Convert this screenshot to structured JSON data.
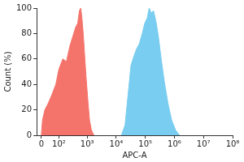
{
  "chart_data": {
    "type": "area",
    "x_label": "APC-A",
    "y_label": "Count (%)",
    "log": "x",
    "grid": false,
    "xlim": [
      -20,
      100000000
    ],
    "xticks": [
      0,
      {
        "value": 100,
        "label": "10²"
      },
      {
        "value": 1000,
        "label": "10³"
      },
      {
        "value": 10000,
        "label": "10⁴"
      },
      {
        "value": 100000,
        "label": "10⁵"
      },
      {
        "value": 1000000,
        "label": "10⁶"
      },
      {
        "value": 10000000,
        "label": "10⁷"
      },
      {
        "value": 100000000,
        "label": "10⁸"
      }
    ],
    "ylim": [
      0,
      100
    ],
    "yticks": [
      0,
      20,
      40,
      60,
      80,
      100
    ],
    "series": [
      {
        "color": "#f4736b",
        "x": [
          0,
          5,
          15,
          30,
          50,
          75,
          100,
          140,
          190,
          250,
          320,
          400,
          470,
          540,
          600,
          660,
          730,
          820,
          920,
          1050,
          1200,
          1400,
          1700
        ],
        "values": [
          0,
          12,
          20,
          25,
          32,
          40,
          52,
          60,
          58,
          70,
          78,
          85,
          88,
          98,
          100,
          92,
          80,
          62,
          45,
          28,
          12,
          4,
          0
        ]
      },
      {
        "color": "#79cdf0",
        "x": [
          15000,
          20000,
          25000,
          32000,
          40000,
          50000,
          62000,
          78000,
          95000,
          115000,
          135000,
          160000,
          190000,
          230000,
          280000,
          350000,
          450000,
          600000,
          800000,
          1100000,
          1500000
        ],
        "values": [
          0,
          8,
          30,
          55,
          62,
          68,
          72,
          80,
          88,
          92,
          100,
          96,
          98,
          90,
          78,
          60,
          42,
          25,
          12,
          4,
          0
        ]
      }
    ]
  }
}
